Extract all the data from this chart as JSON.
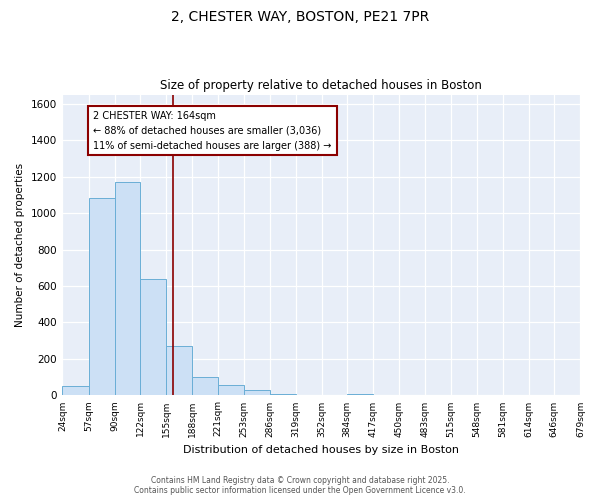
{
  "title": "2, CHESTER WAY, BOSTON, PE21 7PR",
  "subtitle": "Size of property relative to detached houses in Boston",
  "xlabel": "Distribution of detached houses by size in Boston",
  "ylabel": "Number of detached properties",
  "bar_color": "#cce0f5",
  "bar_edge_color": "#6aaed6",
  "background_color": "#e8eef8",
  "grid_color": "#ffffff",
  "annotation_box_color": "#8b0000",
  "vline_color": "#8b0000",
  "vline_x": 164,
  "annotation_title": "2 CHESTER WAY: 164sqm",
  "annotation_line1": "← 88% of detached houses are smaller (3,036)",
  "annotation_line2": "11% of semi-detached houses are larger (388) →",
  "footer1": "Contains HM Land Registry data © Crown copyright and database right 2025.",
  "footer2": "Contains public sector information licensed under the Open Government Licence v3.0.",
  "bin_edges": [
    24,
    57,
    90,
    122,
    155,
    188,
    221,
    253,
    286,
    319,
    352,
    384,
    417,
    450,
    483,
    515,
    548,
    581,
    614,
    646,
    679
  ],
  "bar_heights": [
    50,
    1080,
    1170,
    640,
    270,
    100,
    55,
    30,
    10,
    0,
    0,
    10,
    0,
    0,
    0,
    0,
    0,
    0,
    0,
    0
  ],
  "ylim": [
    0,
    1650
  ],
  "yticks": [
    0,
    200,
    400,
    600,
    800,
    1000,
    1200,
    1400,
    1600
  ]
}
